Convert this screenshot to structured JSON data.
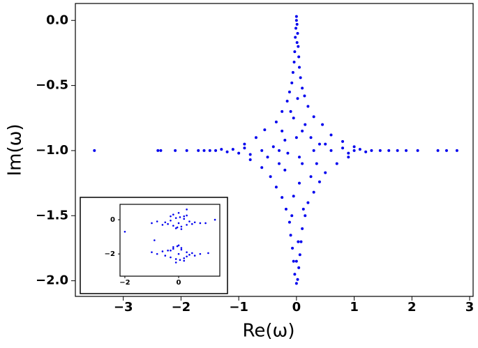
{
  "chart_data": [
    {
      "type": "scatter",
      "xlabel": "Re(ω)",
      "ylabel": "Im(ω)",
      "color": "#0000ee",
      "xlim": [
        -3.83,
        3.06
      ],
      "ylim": [
        -2.12,
        0.13
      ],
      "xticks": [
        {
          "value": -3,
          "label": "−3"
        },
        {
          "value": -2,
          "label": "−2"
        },
        {
          "value": -1,
          "label": "−1"
        },
        0,
        1,
        2,
        3
      ],
      "yticks": [
        {
          "value": 0,
          "label": "0.0"
        },
        {
          "value": -0.5,
          "label": "−0.5"
        },
        {
          "value": -1,
          "label": "−1.0"
        },
        {
          "value": -1.5,
          "label": "−1.5"
        },
        {
          "value": -2,
          "label": "−2.0"
        }
      ],
      "x": [
        0,
        0,
        0.01,
        -0.01,
        0.02,
        -0.02,
        0.01,
        0.03,
        -0.03,
        0.04,
        -0.04,
        0.05,
        -0.06,
        0.07,
        -0.08,
        0.1,
        -0.12,
        0.14,
        -0.16,
        0.2,
        -0.25,
        0.3,
        -0.35,
        0.45,
        -0.55,
        0.6,
        -0.7,
        0.8,
        -0.9,
        1.0,
        0.02,
        -0.05,
        0.1,
        0.25,
        -0.2,
        0.4,
        -0.4,
        -3.5,
        -2.4,
        -2.35,
        -2.1,
        -1.9,
        -1.7,
        -1.6,
        -1.5,
        -1.4,
        -1.3,
        -1.2,
        -1.1,
        -1.0,
        -0.9,
        -0.8,
        -0.6,
        -0.3,
        0.3,
        0.6,
        0.8,
        0.9,
        1.0,
        1.1,
        1.2,
        1.3,
        1.45,
        1.6,
        1.75,
        1.9,
        2.1,
        2.45,
        2.6,
        2.78,
        0.9,
        -0.8,
        0.7,
        -0.6,
        0.5,
        -0.45,
        0.4,
        -0.35,
        0.3,
        -0.25,
        0.2,
        -0.18,
        0.15,
        -0.12,
        0.1,
        -0.1,
        0.08,
        -0.07,
        0.06,
        -0.05,
        0.04,
        -0.03,
        0.02,
        0,
        0.1,
        -0.2,
        0.05,
        -0.05,
        0.12,
        -0.08,
        0.03,
        0,
        -0.3,
        0.25,
        0,
        0.15,
        -0.1,
        0.05,
        -0.15,
        0.5,
        -0.5,
        0.35,
        -0.25
      ],
      "values": [
        0.03,
        0,
        -0.03,
        -0.06,
        -0.1,
        -0.13,
        -0.17,
        -0.2,
        -0.24,
        -0.28,
        -0.32,
        -0.36,
        -0.4,
        -0.44,
        -0.48,
        -0.52,
        -0.55,
        -0.58,
        -0.62,
        -0.66,
        -0.7,
        -0.74,
        -0.78,
        -0.8,
        -0.84,
        -0.88,
        -0.9,
        -0.93,
        -0.95,
        -0.97,
        -0.6,
        -0.75,
        -0.85,
        -0.9,
        -0.92,
        -0.95,
        -0.97,
        -1,
        -1,
        -1,
        -1,
        -1,
        -1,
        -1,
        -1,
        -1,
        -0.99,
        -1.01,
        -0.99,
        -1.02,
        -0.98,
        -1.03,
        -1,
        -1,
        -1,
        -1,
        -0.98,
        -1.02,
        -1,
        -0.99,
        -1.01,
        -1,
        -1,
        -1,
        -1,
        -1,
        -1,
        -1,
        -1,
        -1,
        -1.05,
        -1.07,
        -1.1,
        -1.13,
        -1.17,
        -1.2,
        -1.24,
        -1.28,
        -1.32,
        -1.36,
        -1.4,
        -1.45,
        -1.5,
        -1.55,
        -1.6,
        -1.65,
        -1.7,
        -1.75,
        -1.8,
        -1.85,
        -1.9,
        -1.95,
        -1.99,
        -2.02,
        -1.1,
        -1.15,
        -1.25,
        -1.35,
        -1.45,
        -1.5,
        -1.7,
        -1.85,
        -1.1,
        -1.2,
        -0.9,
        -0.8,
        -0.7,
        -1.05,
        -1.02,
        -0.95,
        -1.05,
        -1.1,
        -0.85
      ]
    },
    {
      "type": "scatter",
      "color": "#0000ee",
      "xlim": [
        -2.18,
        1.53
      ],
      "ylim": [
        -3.3,
        0.9
      ],
      "xticks": [
        {
          "value": -2,
          "label": "−2"
        },
        0
      ],
      "yticks": [
        0,
        {
          "value": -2,
          "label": "−2"
        }
      ],
      "x": [
        -2.0,
        1.35,
        -0.9,
        0.3,
        -1.0,
        -0.8,
        -0.6,
        -0.5,
        -0.4,
        -0.3,
        -0.2,
        -0.1,
        0,
        0.1,
        0.2,
        0.3,
        0.4,
        0.5,
        0.6,
        0.8,
        1.0,
        -0.2,
        0,
        0.2,
        -0.1,
        0.1,
        0.05,
        -0.05,
        0.3,
        -0.3,
        -1.0,
        -0.8,
        -0.6,
        -0.5,
        -0.4,
        -0.3,
        -0.2,
        -0.1,
        0,
        0.1,
        0.2,
        0.3,
        0.4,
        0.5,
        0.6,
        0.8,
        1.1,
        -0.2,
        0,
        0.2,
        -0.1,
        0.1,
        0.05,
        -0.05,
        0.3,
        -0.3
      ],
      "values": [
        -0.7,
        0,
        -1.2,
        0.6,
        -0.2,
        -0.1,
        -0.3,
        -0.15,
        -0.25,
        -0.05,
        -0.35,
        0.1,
        -0.2,
        -0.4,
        0.05,
        -0.3,
        -0.1,
        -0.25,
        -0.15,
        -0.2,
        -0.2,
        0.3,
        0.4,
        0.2,
        -0.5,
        -0.55,
        0.15,
        -0.45,
        0.25,
        0.2,
        -1.9,
        -2.0,
        -1.85,
        -2.1,
        -1.8,
        -2.2,
        -1.7,
        -2.3,
        -2.0,
        -1.75,
        -2.25,
        -1.9,
        -2.05,
        -1.95,
        -2.1,
        -2.0,
        -1.95,
        -1.6,
        -1.5,
        -2.4,
        -2.5,
        -1.65,
        -2.35,
        -1.55,
        -2.15,
        -1.8
      ]
    }
  ]
}
